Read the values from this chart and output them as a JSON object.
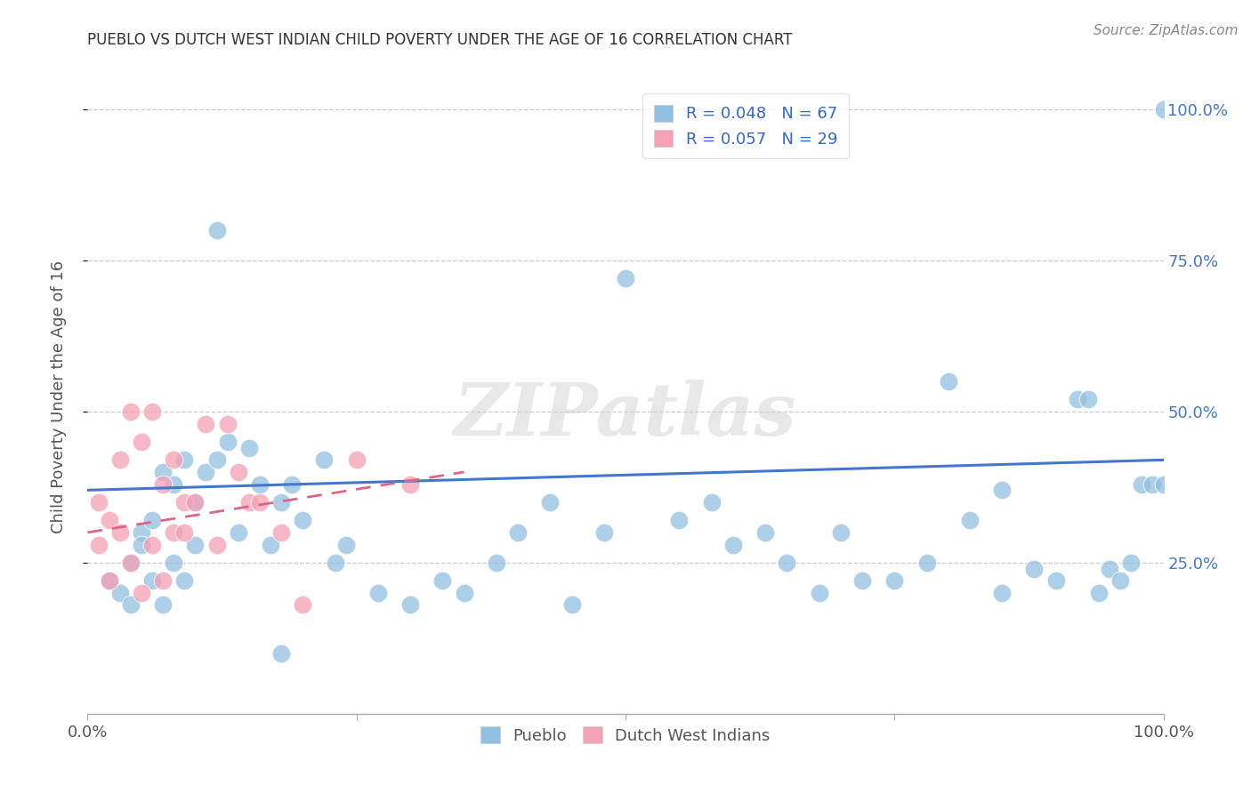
{
  "title": "PUEBLO VS DUTCH WEST INDIAN CHILD POVERTY UNDER THE AGE OF 16 CORRELATION CHART",
  "source": "Source: ZipAtlas.com",
  "ylabel": "Child Poverty Under the Age of 16",
  "xlim": [
    0,
    1
  ],
  "ylim": [
    0,
    1.05
  ],
  "xticks": [
    0.0,
    0.25,
    0.5,
    0.75,
    1.0
  ],
  "xticklabels": [
    "0.0%",
    "",
    "",
    "",
    "100.0%"
  ],
  "yticks": [
    0.25,
    0.5,
    0.75,
    1.0
  ],
  "yticklabels": [
    "25.0%",
    "50.0%",
    "75.0%",
    "100.0%"
  ],
  "pueblo_R": 0.048,
  "pueblo_N": 67,
  "dutch_R": 0.057,
  "dutch_N": 29,
  "pueblo_color": "#92C0E0",
  "dutch_color": "#F4A0B5",
  "pueblo_line_color": "#4477CC",
  "dutch_line_color": "#DD6688",
  "legend_R_color": "#3366CC",
  "background_color": "#FFFFFF",
  "watermark": "ZIPatlas",
  "pueblo_x": [
    0.02,
    0.03,
    0.04,
    0.04,
    0.05,
    0.05,
    0.06,
    0.06,
    0.07,
    0.07,
    0.08,
    0.08,
    0.09,
    0.09,
    0.1,
    0.1,
    0.11,
    0.12,
    0.13,
    0.14,
    0.15,
    0.16,
    0.17,
    0.18,
    0.19,
    0.2,
    0.22,
    0.24,
    0.27,
    0.3,
    0.33,
    0.35,
    0.38,
    0.4,
    0.43,
    0.45,
    0.48,
    0.55,
    0.58,
    0.6,
    0.63,
    0.65,
    0.68,
    0.7,
    0.72,
    0.75,
    0.78,
    0.8,
    0.82,
    0.85,
    0.88,
    0.9,
    0.92,
    0.93,
    0.94,
    0.95,
    0.96,
    0.97,
    0.98,
    0.99,
    1.0,
    1.0,
    0.12,
    0.18,
    0.23,
    0.5,
    0.85
  ],
  "pueblo_y": [
    0.22,
    0.2,
    0.25,
    0.18,
    0.3,
    0.28,
    0.32,
    0.22,
    0.4,
    0.18,
    0.38,
    0.25,
    0.42,
    0.22,
    0.35,
    0.28,
    0.4,
    0.42,
    0.45,
    0.3,
    0.44,
    0.38,
    0.28,
    0.35,
    0.38,
    0.32,
    0.42,
    0.28,
    0.2,
    0.18,
    0.22,
    0.2,
    0.25,
    0.3,
    0.35,
    0.18,
    0.3,
    0.32,
    0.35,
    0.28,
    0.3,
    0.25,
    0.2,
    0.3,
    0.22,
    0.22,
    0.25,
    0.55,
    0.32,
    0.2,
    0.24,
    0.22,
    0.52,
    0.52,
    0.2,
    0.24,
    0.22,
    0.25,
    0.38,
    0.38,
    0.38,
    1.0,
    0.8,
    0.1,
    0.25,
    0.72,
    0.37
  ],
  "dutch_x": [
    0.01,
    0.01,
    0.02,
    0.02,
    0.03,
    0.03,
    0.04,
    0.04,
    0.05,
    0.05,
    0.06,
    0.06,
    0.07,
    0.07,
    0.08,
    0.08,
    0.09,
    0.09,
    0.1,
    0.11,
    0.12,
    0.13,
    0.14,
    0.15,
    0.16,
    0.18,
    0.2,
    0.25,
    0.3
  ],
  "dutch_y": [
    0.28,
    0.35,
    0.32,
    0.22,
    0.42,
    0.3,
    0.5,
    0.25,
    0.45,
    0.2,
    0.5,
    0.28,
    0.38,
    0.22,
    0.3,
    0.42,
    0.35,
    0.3,
    0.35,
    0.48,
    0.28,
    0.48,
    0.4,
    0.35,
    0.35,
    0.3,
    0.18,
    0.42,
    0.38
  ],
  "pueblo_trend_x": [
    0.0,
    1.0
  ],
  "pueblo_trend_y": [
    0.37,
    0.42
  ],
  "dutch_trend_x": [
    0.0,
    0.35
  ],
  "dutch_trend_y": [
    0.3,
    0.4
  ]
}
